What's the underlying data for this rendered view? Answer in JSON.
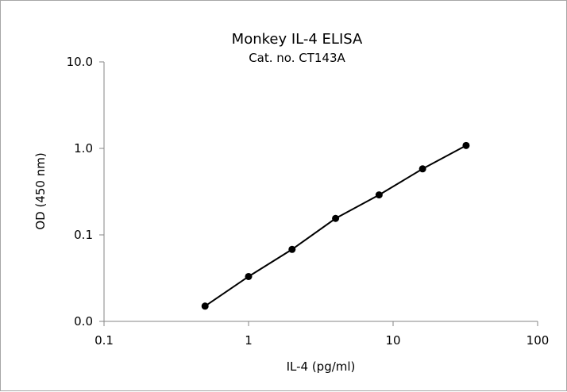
{
  "chart_data": {
    "type": "scatter",
    "title": "Monkey IL-4 ELISA",
    "subtitle": "Cat. no. CT143A",
    "xlabel": "IL-4 (pg/ml)",
    "ylabel": "OD (450 nm)",
    "x_scale": "log",
    "y_scale": "log",
    "xlim": [
      0.1,
      100
    ],
    "ylim": [
      0.01,
      10
    ],
    "x_ticks": [
      0.1,
      1,
      10,
      100
    ],
    "x_tick_labels": [
      "0.1",
      "1",
      "10",
      "100"
    ],
    "y_ticks": [
      0.01,
      0.1,
      1,
      10
    ],
    "y_tick_labels": [
      "0.0",
      "0.1",
      "1.0",
      "10.0"
    ],
    "grid": false,
    "legend": "none",
    "line_color": "#000000",
    "marker_color": "#000000",
    "series": [
      {
        "x": [
          0.5,
          1,
          2,
          4,
          8,
          16,
          32
        ],
        "y": [
          0.015,
          0.033,
          0.068,
          0.155,
          0.29,
          0.58,
          1.08
        ]
      }
    ]
  }
}
